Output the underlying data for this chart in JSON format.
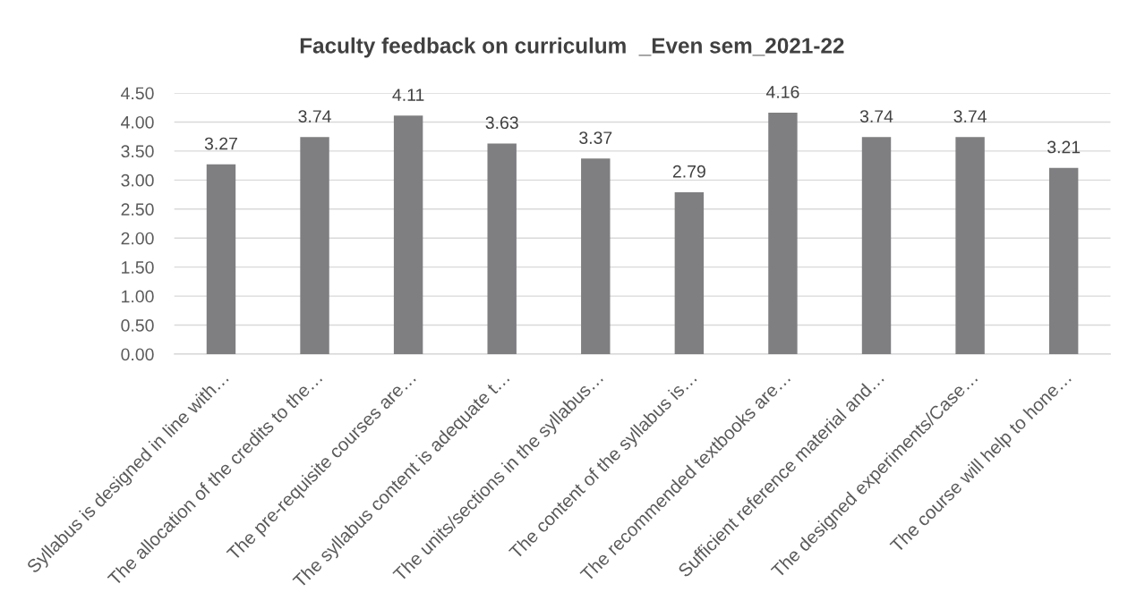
{
  "chart_data": {
    "type": "bar",
    "title": "Faculty feedback on curriculum  _Even sem_2021-22",
    "categories": [
      "Syllabus is designed in line with…",
      "The allocation of the credits to the…",
      "The pre-requisite courses are…",
      "The syllabus content is adequate t…",
      "The units/sections in the syllabus…",
      "The content of the syllabus is…",
      "The recommended textbooks are…",
      "Sufficient reference material and…",
      "The designed experiments/Case…",
      "The course will help to hone…"
    ],
    "values": [
      3.27,
      3.74,
      4.11,
      3.63,
      3.37,
      2.79,
      4.16,
      3.74,
      3.74,
      3.21
    ],
    "color": "#7f7f82",
    "ylim": [
      0,
      4.5
    ],
    "yticks": [
      {
        "value": 0,
        "label": "0.00"
      },
      {
        "value": 0.5,
        "label": "0.50"
      },
      {
        "value": 1,
        "label": "1.00"
      },
      {
        "value": 1.5,
        "label": "1.50"
      },
      {
        "value": 2,
        "label": "2.00"
      },
      {
        "value": 2.5,
        "label": "2.50"
      },
      {
        "value": 3,
        "label": "3.00"
      },
      {
        "value": 3.5,
        "label": "3.50"
      },
      {
        "value": 4,
        "label": "4.00"
      },
      {
        "value": 4.5,
        "label": "4.50"
      }
    ],
    "grid": "y",
    "data_labels": true,
    "legend": false
  }
}
